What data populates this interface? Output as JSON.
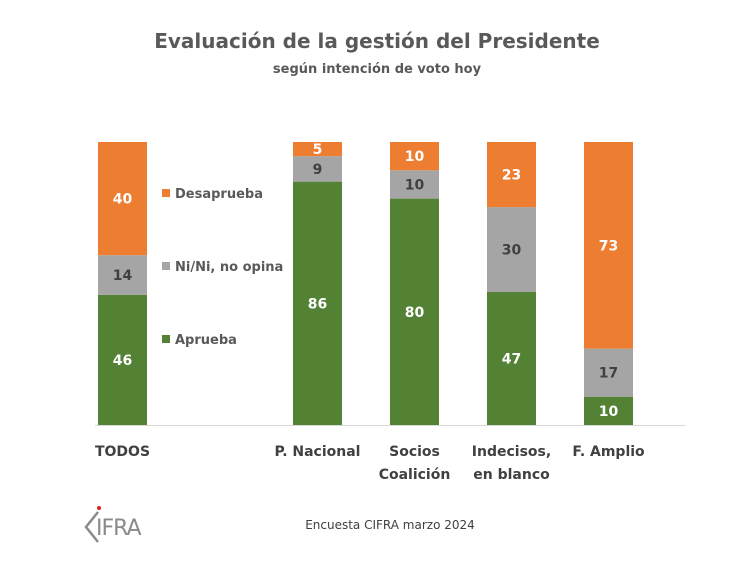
{
  "chart_data": {
    "type": "bar",
    "stacked": true,
    "title": "Evaluación de la gestión del Presidente",
    "subtitle": "según intención de voto hoy",
    "xlabel": "",
    "ylabel": "",
    "ylim": [
      0,
      100
    ],
    "grid": false,
    "legend_position": "right-of-first-bar",
    "categories": [
      [
        "TODOS"
      ],
      [
        "P. Nacional"
      ],
      [
        "Socios",
        "Coalición"
      ],
      [
        "Indecisos,",
        "en blanco"
      ],
      [
        "F. Amplio"
      ]
    ],
    "series": [
      {
        "name": "Aprueba",
        "color": "#548235",
        "label_color": "#ffffff",
        "values": [
          46,
          86,
          80,
          47,
          10
        ]
      },
      {
        "name": "Ni/Ni, no opina",
        "color": "#a5a5a5",
        "label_color": "#404040",
        "values": [
          14,
          9,
          10,
          30,
          17
        ]
      },
      {
        "name": "Desaprueba",
        "color": "#ed7d31",
        "label_color": "#ffffff",
        "values": [
          40,
          5,
          10,
          23,
          73
        ]
      }
    ],
    "legend": [
      {
        "name": "Desaprueba",
        "color": "#ed7d31"
      },
      {
        "name": "Ni/Ni, no opina",
        "color": "#a5a5a5"
      },
      {
        "name": "Aprueba",
        "color": "#548235"
      }
    ]
  },
  "footer": {
    "source": "Encuesta CIFRA marzo 2024",
    "logo_text": "IFRA",
    "logo_icon": "cifra-logo-icon"
  }
}
